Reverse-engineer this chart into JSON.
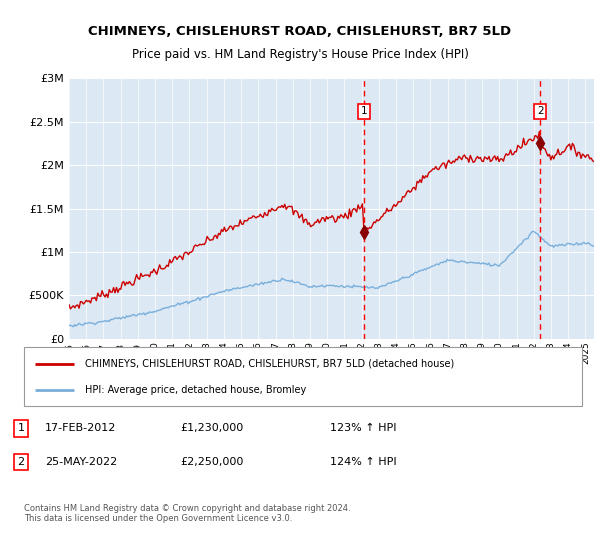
{
  "title": "CHIMNEYS, CHISLEHURST ROAD, CHISLEHURST, BR7 5LD",
  "subtitle": "Price paid vs. HM Land Registry's House Price Index (HPI)",
  "bg_color": "#dce9f5",
  "sale1_date": "17-FEB-2012",
  "sale1_price": 1230000,
  "sale2_date": "25-MAY-2022",
  "sale2_price": 2250000,
  "sale1_hpi": "123% ↑ HPI",
  "sale2_hpi": "124% ↑ HPI",
  "red_line_color": "#cc0000",
  "blue_line_color": "#7aafdb",
  "legend_label_red": "CHIMNEYS, CHISLEHURST ROAD, CHISLEHURST, BR7 5LD (detached house)",
  "legend_label_blue": "HPI: Average price, detached house, Bromley",
  "footer": "Contains HM Land Registry data © Crown copyright and database right 2024.\nThis data is licensed under the Open Government Licence v3.0.",
  "ylim": [
    0,
    3000000
  ],
  "yticks": [
    0,
    500000,
    1000000,
    1500000,
    2000000,
    2500000,
    3000000
  ],
  "ytick_labels": [
    "£0",
    "£500K",
    "£1M",
    "£1.5M",
    "£2M",
    "£2.5M",
    "£3M"
  ],
  "xstart": 1995.0,
  "xend": 2025.5,
  "sale1_x": 2012.12,
  "sale2_x": 2022.38,
  "red_seed": 42,
  "blue_seed": 7
}
